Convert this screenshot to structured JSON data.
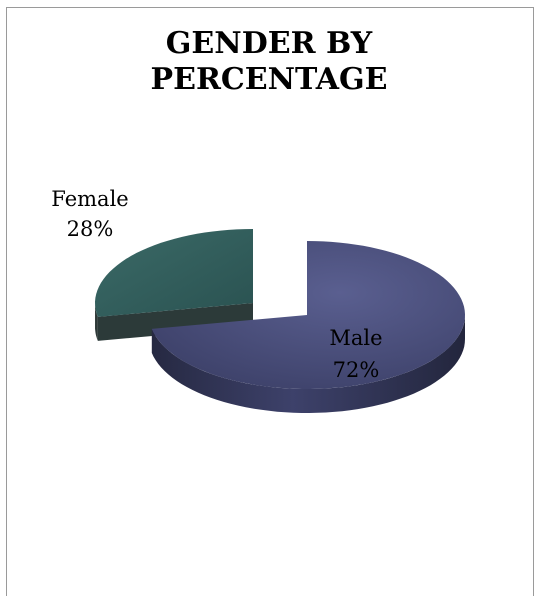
{
  "chart_data": {
    "type": "pie",
    "title_lines": [
      "GENDER BY",
      "PERCENTAGE"
    ],
    "slices": [
      {
        "name": "Male",
        "value": 72,
        "label": "72%",
        "color": "#43476e"
      },
      {
        "name": "Female",
        "value": 28,
        "label": "28%",
        "color": "#2f5a58"
      }
    ],
    "style": "3d-exploded",
    "legend": "none"
  }
}
